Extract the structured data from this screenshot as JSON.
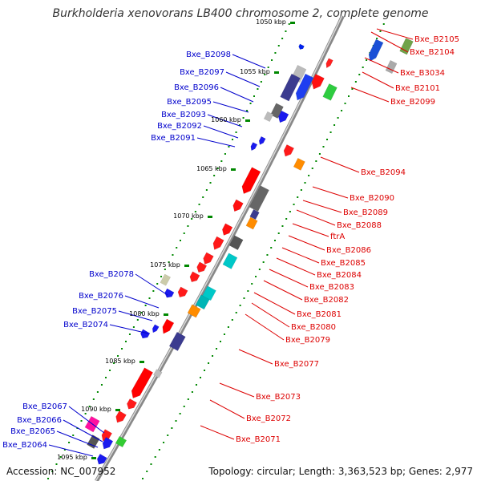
{
  "title": "Burkholderia xenovorans LB400 chromosome 2, complete genome",
  "footer": {
    "accession": "Accession: NC_007952",
    "summary": "Topology: circular; Length: 3,363,523 bp; Genes: 2,977"
  },
  "scale_labels": [
    "1050 kbp",
    "1055 kbp",
    "1060 kbp",
    "1065 kbp",
    "1070 kbp",
    "1075 kbp",
    "1080 kbp",
    "1085 kbp",
    "1090 kbp",
    "1095 kbp"
  ],
  "forward_labels": [
    "Bxe_B2105",
    "Bxe_B2104",
    "Bxe_B3034",
    "Bxe_B2101",
    "Bxe_B2099",
    "Bxe_B2094",
    "Bxe_B2090",
    "Bxe_B2089",
    "Bxe_B2088",
    "ftrA",
    "Bxe_B2086",
    "Bxe_B2085",
    "Bxe_B2084",
    "Bxe_B2083",
    "Bxe_B2082",
    "Bxe_B2081",
    "Bxe_B2080",
    "Bxe_B2079",
    "Bxe_B2077",
    "Bxe_B2073",
    "Bxe_B2072",
    "Bxe_B2071"
  ],
  "reverse_labels": [
    "Bxe_B2098",
    "Bxe_B2097",
    "Bxe_B2096",
    "Bxe_B2095",
    "Bxe_B2093",
    "Bxe_B2092",
    "Bxe_B2091",
    "Bxe_B2078",
    "Bxe_B2076",
    "Bxe_B2075",
    "Bxe_B2074",
    "Bxe_B2067",
    "Bxe_B2066",
    "Bxe_B2065",
    "Bxe_B2064"
  ],
  "colors": {
    "forward": "#dd0000",
    "reverse": "#0000cc",
    "feature_red": "#ff0000",
    "feature_blue": "#0000ff",
    "backbone": "#888888",
    "tick_dots": "#008800"
  }
}
